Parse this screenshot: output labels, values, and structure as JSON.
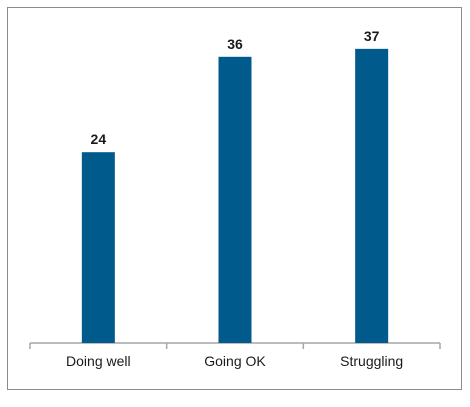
{
  "chart_data": {
    "type": "bar",
    "categories": [
      "Doing well",
      "Going OK",
      "Struggling"
    ],
    "values": [
      24,
      36,
      37
    ],
    "title": "",
    "xlabel": "",
    "ylabel": "",
    "ylim": [
      0,
      40
    ],
    "grid": false,
    "data_labels": true,
    "bar_color": "#005a8c",
    "axis_color": "#a6a6a6"
  }
}
